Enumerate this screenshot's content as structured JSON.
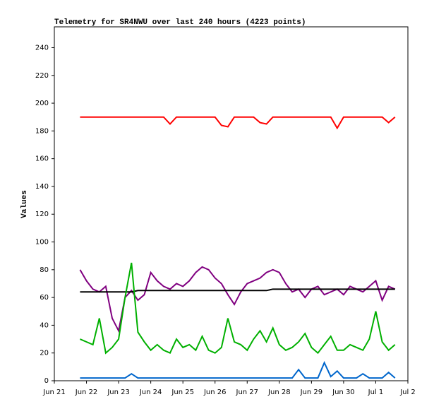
{
  "chart_data": {
    "type": "line",
    "title": "Telemetry for SR4NWU over last 240 hours (4223 points)",
    "y_label": "Values",
    "x": [
      0.8,
      1.0,
      1.2,
      1.4,
      1.6,
      1.8,
      2.0,
      2.2,
      2.4,
      2.6,
      2.8,
      3.0,
      3.2,
      3.4,
      3.6,
      3.8,
      4.0,
      4.2,
      4.4,
      4.6,
      4.8,
      5.0,
      5.2,
      5.4,
      5.6,
      5.8,
      6.0,
      6.2,
      6.4,
      6.6,
      6.8,
      7.0,
      7.2,
      7.4,
      7.6,
      7.8,
      8.0,
      8.2,
      8.4,
      8.6,
      8.8,
      9.0,
      9.2,
      9.4,
      9.6,
      9.8,
      10.0,
      10.2,
      10.4,
      10.6
    ],
    "series": [
      {
        "color": "#ff0000",
        "values": [
          190,
          190,
          190,
          190,
          190,
          190,
          190,
          190,
          190,
          190,
          190,
          190,
          190,
          190,
          185,
          190,
          190,
          190,
          190,
          190,
          190,
          190,
          184,
          183,
          190,
          190,
          190,
          190,
          186,
          185,
          190,
          190,
          190,
          190,
          190,
          190,
          190,
          190,
          190,
          190,
          182,
          190,
          190,
          190,
          190,
          190,
          190,
          190,
          186,
          190
        ]
      },
      {
        "color": "#800080",
        "values": [
          80,
          72,
          66,
          64,
          68,
          45,
          36,
          60,
          65,
          58,
          62,
          78,
          72,
          68,
          66,
          70,
          68,
          72,
          78,
          82,
          80,
          74,
          70,
          62,
          55,
          64,
          70,
          72,
          74,
          78,
          80,
          78,
          70,
          64,
          66,
          60,
          66,
          68,
          62,
          64,
          66,
          62,
          68,
          66,
          64,
          68,
          72,
          58,
          68,
          66
        ]
      },
      {
        "color": "#000000",
        "values": [
          64,
          64,
          64,
          64,
          64,
          64,
          64,
          64,
          64,
          65,
          65,
          65,
          65,
          65,
          65,
          65,
          65,
          65,
          65,
          65,
          65,
          65,
          65,
          65,
          65,
          65,
          65,
          65,
          65,
          65,
          66,
          66,
          66,
          66,
          66,
          66,
          66,
          66,
          66,
          66,
          66,
          66,
          66,
          66,
          66,
          66,
          66,
          66,
          66,
          66
        ]
      },
      {
        "color": "#00b000",
        "values": [
          30,
          28,
          26,
          45,
          20,
          24,
          30,
          60,
          85,
          35,
          28,
          22,
          26,
          22,
          20,
          30,
          24,
          26,
          22,
          32,
          22,
          20,
          24,
          45,
          28,
          26,
          22,
          30,
          36,
          28,
          38,
          26,
          22,
          24,
          28,
          34,
          24,
          20,
          26,
          32,
          22,
          22,
          26,
          24,
          22,
          30,
          50,
          28,
          22,
          26
        ]
      },
      {
        "color": "#0066cc",
        "values": [
          2,
          2,
          2,
          2,
          2,
          2,
          2,
          2,
          5,
          2,
          2,
          2,
          2,
          2,
          2,
          2,
          2,
          2,
          2,
          2,
          2,
          2,
          2,
          2,
          2,
          2,
          2,
          2,
          2,
          2,
          2,
          2,
          2,
          2,
          8,
          2,
          2,
          2,
          13,
          3,
          7,
          2,
          2,
          2,
          5,
          2,
          2,
          2,
          6,
          2
        ]
      }
    ],
    "xlim": [
      0,
      11
    ],
    "xticks": [
      {
        "value": 0,
        "label": "Jun 21"
      },
      {
        "value": 1,
        "label": "Jun 22"
      },
      {
        "value": 2,
        "label": "Jun 23"
      },
      {
        "value": 3,
        "label": "Jun 24"
      },
      {
        "value": 4,
        "label": "Jun 25"
      },
      {
        "value": 5,
        "label": "Jun 26"
      },
      {
        "value": 6,
        "label": "Jun 27"
      },
      {
        "value": 7,
        "label": "Jun 28"
      },
      {
        "value": 8,
        "label": "Jun 29"
      },
      {
        "value": 9,
        "label": "Jun 30"
      },
      {
        "value": 10,
        "label": "Jul 1"
      },
      {
        "value": 11,
        "label": "Jul 2"
      }
    ],
    "ylim": [
      0,
      255
    ],
    "yticks": [
      0,
      20,
      40,
      60,
      80,
      100,
      120,
      140,
      160,
      180,
      200,
      220,
      240
    ]
  }
}
